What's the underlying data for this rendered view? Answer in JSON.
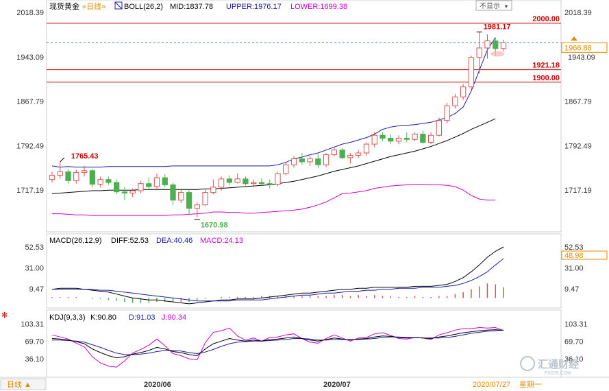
{
  "header": {
    "symbol": "现货黄金",
    "period_link": "«日线»",
    "boll_label": "BOLL(26,2)",
    "mid": "MID:1837.78",
    "upper": "UPPER:1976.17",
    "lower": "LOWER:1699.38",
    "hide_button": "不显示"
  },
  "colors": {
    "up": "#d9534f",
    "down": "#4caf50",
    "upper_band": "#1a1aa6",
    "mid_band": "#000000",
    "lower_band": "#cc00cc",
    "level_line": "#cc0000",
    "macd_dif": "#000000",
    "macd_dea": "#1a1aa6",
    "k_line": "#000000",
    "d_line": "#1a1aa6",
    "j_line": "#cc00cc"
  },
  "price_axis": {
    "ticks_left": [
      "2018.39",
      "1943.09",
      "1867.79",
      "1792.49",
      "1717.19"
    ],
    "ticks_right": [
      "2018.39",
      "1943.09",
      "1867.79",
      "1792.49",
      "1717.19"
    ],
    "current_price": "1966.88"
  },
  "levels": [
    {
      "label": "2000.00",
      "value": 2000.0
    },
    {
      "label": "1921.18",
      "value": 1921.18
    },
    {
      "label": "1900.00",
      "value": 1900.0
    }
  ],
  "annotations": {
    "high_mark": "1765.43",
    "low_mark": "1670.98",
    "peak_mark": "1981.17"
  },
  "macd": {
    "title": "MACD(26,12,9)",
    "diff": "DIFF:52.53",
    "dea": "DEA:40.46",
    "macd": "MACD:24.13",
    "ticks_left": [
      "52.53",
      "31.00",
      "9.47"
    ],
    "ticks_right": [
      "52.53",
      "48.98",
      "31.00",
      "9.47"
    ]
  },
  "kdj": {
    "title": "KDJ(9,3,3)",
    "k": "K:90.80",
    "d": "D:91.03",
    "j": "J:90.34",
    "ticks_left": [
      "103.31",
      "69.70",
      "36.10"
    ],
    "ticks_right": [
      "103.31",
      "69.70",
      "36.10"
    ]
  },
  "footer": {
    "period_button": "日线 ▲",
    "x_labels": [
      "2020/06",
      "2020/07"
    ],
    "date_label": "2020/07/27",
    "weekday_label": "星期一",
    "watermark": "汇通财经",
    "watermark_url": "FX678.COM"
  },
  "chart_data": {
    "type": "candlestick",
    "ylim": [
      1650,
      2030
    ],
    "candles": [
      {
        "o": 1735,
        "h": 1748,
        "l": 1730,
        "c": 1742
      },
      {
        "o": 1742,
        "h": 1765,
        "l": 1736,
        "c": 1748
      },
      {
        "o": 1748,
        "h": 1752,
        "l": 1728,
        "c": 1733
      },
      {
        "o": 1733,
        "h": 1751,
        "l": 1728,
        "c": 1747
      },
      {
        "o": 1747,
        "h": 1758,
        "l": 1740,
        "c": 1750
      },
      {
        "o": 1750,
        "h": 1752,
        "l": 1722,
        "c": 1727
      },
      {
        "o": 1727,
        "h": 1740,
        "l": 1722,
        "c": 1735
      },
      {
        "o": 1735,
        "h": 1740,
        "l": 1726,
        "c": 1730
      },
      {
        "o": 1730,
        "h": 1735,
        "l": 1710,
        "c": 1714
      },
      {
        "o": 1714,
        "h": 1722,
        "l": 1700,
        "c": 1712
      },
      {
        "o": 1712,
        "h": 1720,
        "l": 1705,
        "c": 1716
      },
      {
        "o": 1716,
        "h": 1733,
        "l": 1712,
        "c": 1728
      },
      {
        "o": 1728,
        "h": 1738,
        "l": 1718,
        "c": 1723
      },
      {
        "o": 1723,
        "h": 1745,
        "l": 1718,
        "c": 1738
      },
      {
        "o": 1738,
        "h": 1744,
        "l": 1722,
        "c": 1726
      },
      {
        "o": 1726,
        "h": 1730,
        "l": 1692,
        "c": 1700
      },
      {
        "o": 1700,
        "h": 1718,
        "l": 1695,
        "c": 1713
      },
      {
        "o": 1713,
        "h": 1718,
        "l": 1677,
        "c": 1686
      },
      {
        "o": 1686,
        "h": 1696,
        "l": 1671,
        "c": 1692
      },
      {
        "o": 1692,
        "h": 1720,
        "l": 1690,
        "c": 1713
      },
      {
        "o": 1713,
        "h": 1735,
        "l": 1710,
        "c": 1722
      },
      {
        "o": 1722,
        "h": 1740,
        "l": 1716,
        "c": 1736
      },
      {
        "o": 1736,
        "h": 1742,
        "l": 1725,
        "c": 1730
      },
      {
        "o": 1730,
        "h": 1745,
        "l": 1728,
        "c": 1736
      },
      {
        "o": 1736,
        "h": 1740,
        "l": 1725,
        "c": 1728
      },
      {
        "o": 1728,
        "h": 1735,
        "l": 1722,
        "c": 1730
      },
      {
        "o": 1730,
        "h": 1737,
        "l": 1725,
        "c": 1728
      },
      {
        "o": 1728,
        "h": 1735,
        "l": 1720,
        "c": 1727
      },
      {
        "o": 1727,
        "h": 1748,
        "l": 1724,
        "c": 1745
      },
      {
        "o": 1745,
        "h": 1765,
        "l": 1742,
        "c": 1760
      },
      {
        "o": 1760,
        "h": 1775,
        "l": 1755,
        "c": 1770
      },
      {
        "o": 1770,
        "h": 1780,
        "l": 1760,
        "c": 1765
      },
      {
        "o": 1765,
        "h": 1775,
        "l": 1758,
        "c": 1770
      },
      {
        "o": 1770,
        "h": 1778,
        "l": 1755,
        "c": 1760
      },
      {
        "o": 1760,
        "h": 1780,
        "l": 1756,
        "c": 1777
      },
      {
        "o": 1777,
        "h": 1790,
        "l": 1774,
        "c": 1785
      },
      {
        "o": 1785,
        "h": 1788,
        "l": 1770,
        "c": 1772
      },
      {
        "o": 1772,
        "h": 1780,
        "l": 1762,
        "c": 1776
      },
      {
        "o": 1776,
        "h": 1785,
        "l": 1772,
        "c": 1780
      },
      {
        "o": 1780,
        "h": 1798,
        "l": 1775,
        "c": 1795
      },
      {
        "o": 1795,
        "h": 1815,
        "l": 1790,
        "c": 1810
      },
      {
        "o": 1810,
        "h": 1815,
        "l": 1800,
        "c": 1805
      },
      {
        "o": 1805,
        "h": 1812,
        "l": 1795,
        "c": 1800
      },
      {
        "o": 1800,
        "h": 1810,
        "l": 1795,
        "c": 1805
      },
      {
        "o": 1805,
        "h": 1815,
        "l": 1798,
        "c": 1803
      },
      {
        "o": 1803,
        "h": 1815,
        "l": 1800,
        "c": 1812
      },
      {
        "o": 1812,
        "h": 1818,
        "l": 1796,
        "c": 1798
      },
      {
        "o": 1798,
        "h": 1815,
        "l": 1795,
        "c": 1810
      },
      {
        "o": 1810,
        "h": 1840,
        "l": 1808,
        "c": 1835
      },
      {
        "o": 1835,
        "h": 1865,
        "l": 1830,
        "c": 1860
      },
      {
        "o": 1860,
        "h": 1880,
        "l": 1855,
        "c": 1875
      },
      {
        "o": 1875,
        "h": 1897,
        "l": 1870,
        "c": 1892
      },
      {
        "o": 1892,
        "h": 1945,
        "l": 1888,
        "c": 1942
      },
      {
        "o": 1942,
        "h": 1985,
        "l": 1915,
        "c": 1958
      },
      {
        "o": 1958,
        "h": 1981,
        "l": 1940,
        "c": 1970
      },
      {
        "o": 1970,
        "h": 1976,
        "l": 1944,
        "c": 1957
      },
      {
        "o": 1957,
        "h": 1972,
        "l": 1952,
        "c": 1967
      }
    ],
    "upper": [
      1758,
      1756,
      1757,
      1756,
      1756,
      1756,
      1756,
      1757,
      1757,
      1757,
      1757,
      1757,
      1757,
      1757,
      1757,
      1758,
      1758,
      1758,
      1758,
      1758,
      1758,
      1758,
      1758,
      1758,
      1758,
      1758,
      1758,
      1758,
      1760,
      1764,
      1770,
      1773,
      1777,
      1780,
      1785,
      1790,
      1795,
      1798,
      1802,
      1806,
      1812,
      1820,
      1824,
      1826,
      1827,
      1828,
      1830,
      1832,
      1836,
      1840,
      1847,
      1858,
      1885,
      1920,
      1955,
      1976,
      null
    ],
    "mid": [
      1711,
      1712,
      1713,
      1714,
      1715,
      1716,
      1716,
      1717,
      1717,
      1717,
      1717,
      1718,
      1718,
      1718,
      1718,
      1718,
      1718,
      1718,
      1718,
      1719,
      1719,
      1720,
      1721,
      1722,
      1723,
      1724,
      1725,
      1726,
      1728,
      1730,
      1732,
      1735,
      1738,
      1741,
      1745,
      1749,
      1752,
      1755,
      1758,
      1762,
      1766,
      1770,
      1774,
      1777,
      1780,
      1783,
      1787,
      1791,
      1796,
      1801,
      1807,
      1813,
      1820,
      1826,
      1832,
      1838,
      null
    ],
    "lower": [
      1677,
      1677,
      1676,
      1675,
      1675,
      1674,
      1674,
      1674,
      1674,
      1674,
      1674,
      1674,
      1674,
      1674,
      1674,
      1675,
      1675,
      1676,
      1677,
      1678,
      1680,
      1680,
      1679,
      1679,
      1678,
      1678,
      1679,
      1680,
      1681,
      1682,
      1683,
      1685,
      1688,
      1692,
      1697,
      1704,
      1711,
      1712,
      1714,
      1716,
      1720,
      1722,
      1724,
      1725,
      1726,
      1727,
      1727,
      1726,
      1726,
      1725,
      1723,
      1717,
      1708,
      1702,
      1700,
      1700,
      null
    ],
    "macd": {
      "dif": [
        9,
        10,
        10,
        10,
        9,
        8,
        7,
        6,
        4,
        2,
        0,
        -1,
        -2,
        -2,
        -3,
        -4,
        -5,
        -6,
        -5,
        -4,
        -3,
        -2,
        -2,
        -1,
        -1,
        -1,
        0,
        1,
        2,
        3,
        4,
        5,
        5,
        6,
        7,
        8,
        9,
        9,
        10,
        10,
        11,
        11,
        11,
        11,
        11,
        12,
        12,
        12,
        13,
        14,
        17,
        21,
        27,
        34,
        42,
        48,
        52.53
      ],
      "dea": [
        9,
        9,
        9,
        9,
        9,
        9,
        8,
        8,
        7,
        6,
        5,
        4,
        3,
        2,
        1,
        0,
        -1,
        -2,
        -3,
        -3,
        -3,
        -3,
        -3,
        -2,
        -2,
        -2,
        -2,
        -1,
        0,
        1,
        2,
        3,
        3,
        4,
        5,
        5,
        6,
        7,
        7,
        8,
        8,
        9,
        9,
        10,
        10,
        10,
        11,
        11,
        11,
        12,
        13,
        15,
        18,
        22,
        27,
        34,
        40.46
      ],
      "hist": [
        1,
        1,
        1,
        1,
        0,
        -1,
        -1,
        -2,
        -3,
        -4,
        -5,
        -5,
        -5,
        -4,
        -4,
        -4,
        -4,
        -4,
        -2,
        -1,
        0,
        1,
        1,
        1,
        1,
        1,
        2,
        2,
        2,
        2,
        2,
        2,
        2,
        2,
        2,
        3,
        3,
        2,
        3,
        2,
        3,
        2,
        2,
        1,
        1,
        2,
        1,
        1,
        2,
        2,
        4,
        6,
        9,
        12,
        15,
        14,
        11
      ]
    },
    "kdj": {
      "k": [
        75,
        74,
        72,
        69,
        65,
        55,
        48,
        42,
        38,
        40,
        45,
        48,
        52,
        58,
        55,
        50,
        48,
        44,
        42,
        55,
        65,
        70,
        75,
        72,
        70,
        72,
        70,
        73,
        74,
        76,
        78,
        75,
        72,
        70,
        73,
        76,
        74,
        72,
        74,
        75,
        78,
        80,
        79,
        77,
        76,
        77,
        76,
        75,
        78,
        80,
        83,
        86,
        88,
        90,
        91,
        92,
        90.8
      ],
      "d": [
        72,
        72,
        71,
        70,
        68,
        63,
        58,
        52,
        47,
        44,
        44,
        45,
        47,
        50,
        52,
        52,
        51,
        48,
        46,
        49,
        54,
        60,
        65,
        68,
        69,
        70,
        70,
        71,
        72,
        73,
        75,
        75,
        74,
        72,
        72,
        73,
        73,
        73,
        73,
        74,
        75,
        77,
        78,
        78,
        77,
        77,
        76,
        76,
        76,
        77,
        79,
        82,
        85,
        87,
        89,
        90,
        91.03
      ],
      "j": [
        82,
        78,
        74,
        66,
        59,
        40,
        28,
        22,
        20,
        32,
        47,
        54,
        62,
        74,
        61,
        46,
        42,
        36,
        34,
        67,
        87,
        90,
        95,
        80,
        72,
        76,
        70,
        77,
        78,
        82,
        84,
        75,
        68,
        66,
        75,
        82,
        76,
        70,
        76,
        77,
        84,
        86,
        81,
        75,
        74,
        77,
        76,
        73,
        82,
        86,
        91,
        94,
        94,
        96,
        95,
        96,
        90.34
      ]
    }
  }
}
